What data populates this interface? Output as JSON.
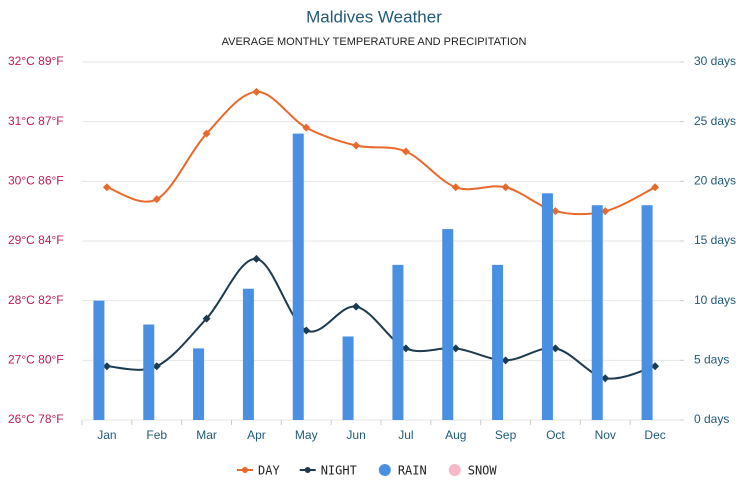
{
  "chart_data": {
    "type": "bar-line",
    "title": "Maldives Weather",
    "subtitle": "AVERAGE MONTHLY TEMPERATURE AND PRECIPITATION",
    "categories": [
      "Jan",
      "Feb",
      "Mar",
      "Apr",
      "May",
      "Jun",
      "Jul",
      "Aug",
      "Sep",
      "Oct",
      "Nov",
      "Dec"
    ],
    "series": [
      {
        "name": "DAY",
        "type": "line",
        "color": "#e8692c",
        "values": [
          29.9,
          29.7,
          30.8,
          31.5,
          30.9,
          30.6,
          30.5,
          29.9,
          29.9,
          29.5,
          29.5,
          29.9
        ]
      },
      {
        "name": "NIGHT",
        "type": "line",
        "color": "#1d3b4f",
        "values": [
          26.9,
          26.9,
          27.7,
          28.7,
          27.5,
          27.9,
          27.2,
          27.2,
          27.0,
          27.2,
          26.7,
          26.9
        ]
      },
      {
        "name": "RAIN",
        "type": "bar",
        "axis": "y2",
        "color": "#4a90e2",
        "values": [
          10,
          8,
          6,
          11,
          24,
          7,
          13,
          16,
          13,
          19,
          18,
          18
        ]
      },
      {
        "name": "SNOW",
        "type": "bar",
        "axis": "y2",
        "color": "#f6b8c8",
        "values": [
          0,
          0,
          0,
          0,
          0,
          0,
          0,
          0,
          0,
          0,
          0,
          0
        ]
      }
    ],
    "ylim": [
      26,
      32
    ],
    "yticks": [
      {
        "value": 26,
        "label": "26°C 78°F"
      },
      {
        "value": 27,
        "label": "27°C 80°F"
      },
      {
        "value": 28,
        "label": "28°C 82°F"
      },
      {
        "value": 29,
        "label": "29°C 84°F"
      },
      {
        "value": 30,
        "label": "30°C 86°F"
      },
      {
        "value": 31,
        "label": "31°C 87°F"
      },
      {
        "value": 32,
        "label": "32°C 89°F"
      }
    ],
    "y2lim": [
      0,
      30
    ],
    "y2ticks": [
      {
        "value": 0,
        "label": "0 days"
      },
      {
        "value": 5,
        "label": "5 days"
      },
      {
        "value": 10,
        "label": "10 days"
      },
      {
        "value": 15,
        "label": "15 days"
      },
      {
        "value": 20,
        "label": "20 days"
      },
      {
        "value": 25,
        "label": "25 days"
      },
      {
        "value": 30,
        "label": "30 days"
      }
    ],
    "grid": true
  }
}
